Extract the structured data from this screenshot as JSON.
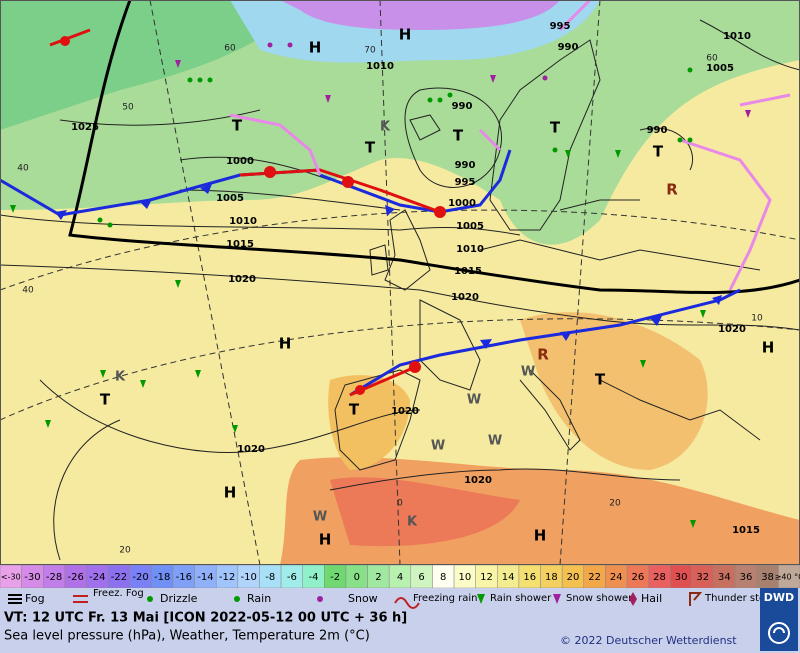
{
  "map": {
    "isobar_labels": [
      "1025",
      "1000",
      "1005",
      "1010",
      "1015",
      "1020",
      "1020",
      "1020",
      "1020",
      "1020",
      "1015",
      "1010",
      "1005",
      "1000",
      "995",
      "990",
      "990",
      "995",
      "990",
      "1010",
      "1005",
      "990",
      "1015",
      "1010",
      "1020"
    ],
    "graticule_labels": [
      "60",
      "50",
      "40",
      "40",
      "70",
      "60",
      "20",
      "0",
      "20",
      "10"
    ],
    "pressure_centers": [
      "H",
      "H",
      "H",
      "H",
      "H",
      "H",
      "H",
      "T",
      "T",
      "T",
      "T",
      "T",
      "T",
      "T",
      "T"
    ],
    "weather_codes": [
      "K",
      "K",
      "K",
      "W",
      "W",
      "W",
      "W",
      "W",
      "R",
      "R"
    ]
  },
  "temperature_scale": {
    "cells": [
      "<-30",
      -30,
      -28,
      -26,
      -24,
      -22,
      -20,
      -18,
      -16,
      -14,
      -12,
      -10,
      -8,
      -6,
      -4,
      -2,
      0,
      2,
      4,
      6,
      8,
      10,
      12,
      14,
      16,
      18,
      20,
      22,
      24,
      26,
      28,
      30,
      32,
      34,
      36,
      38,
      "≥40 °C"
    ],
    "colors": [
      "#e8a0e8",
      "#d58ce8",
      "#c27ee8",
      "#b070e8",
      "#a070ee",
      "#8c70f0",
      "#7a80f5",
      "#7090f5",
      "#80a0f8",
      "#90b0fa",
      "#a0c4fc",
      "#b0d4fc",
      "#a8e0f8",
      "#a0ece8",
      "#90f0c8",
      "#70d870",
      "#88e088",
      "#a0e8a0",
      "#b8f0b0",
      "#d0f4c0",
      "#fffff0",
      "#fcfcc8",
      "#f8f4a8",
      "#f4ec90",
      "#f4e070",
      "#f4d060",
      "#f4c050",
      "#f2a848",
      "#f09050",
      "#ec7858",
      "#e86060",
      "#e05050",
      "#d86058",
      "#c87060",
      "#b88070",
      "#a88070",
      "#c0a898"
    ]
  },
  "weather_legend": [
    "Fog",
    "Freez. Fog",
    "Drizzle",
    "Rain",
    "Snow",
    "Freezing rain",
    "Rain shower",
    "Snow shower",
    "Hail",
    "Thunder storm"
  ],
  "footer": {
    "valid_time": "VT: 12 UTC Fr.  13 Mai [ICON 2022-05-12  00 UTC + 36 h]",
    "subtitle": "Sea level pressure (hPa), Weather, Temperature 2m (°C)",
    "copyright": "© 2022 Deutscher Wetterdienst",
    "logo": "DWD"
  }
}
